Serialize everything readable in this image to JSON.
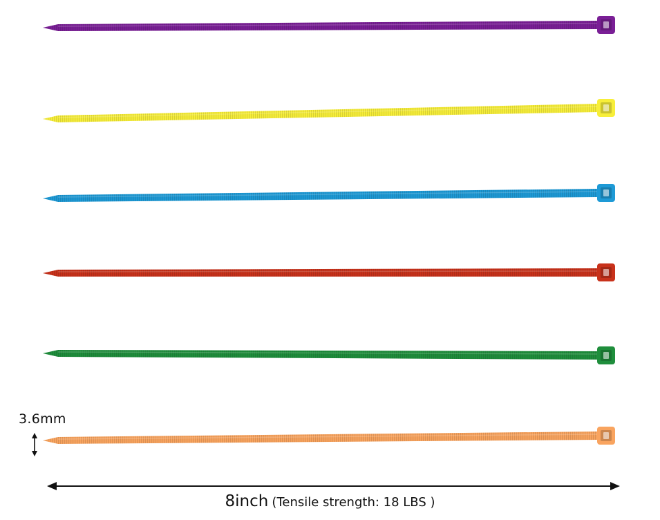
{
  "product": {
    "tie_colors": [
      {
        "name": "purple",
        "hex": "#7a1f96"
      },
      {
        "name": "yellow",
        "hex": "#f7ee3a"
      },
      {
        "name": "blue",
        "hex": "#1e9ad6"
      },
      {
        "name": "red",
        "hex": "#c8321b"
      },
      {
        "name": "green",
        "hex": "#1f8e3c"
      },
      {
        "name": "orange",
        "hex": "#f9a45f"
      }
    ]
  },
  "dimensions": {
    "width_label": "3.6mm",
    "length_label": "8inch",
    "strength_text": "(Tensile strength: 18 LBS )"
  },
  "icons": {
    "width_arrow": "double-arrow-vertical",
    "length_arrow": "double-arrow-horizontal"
  }
}
